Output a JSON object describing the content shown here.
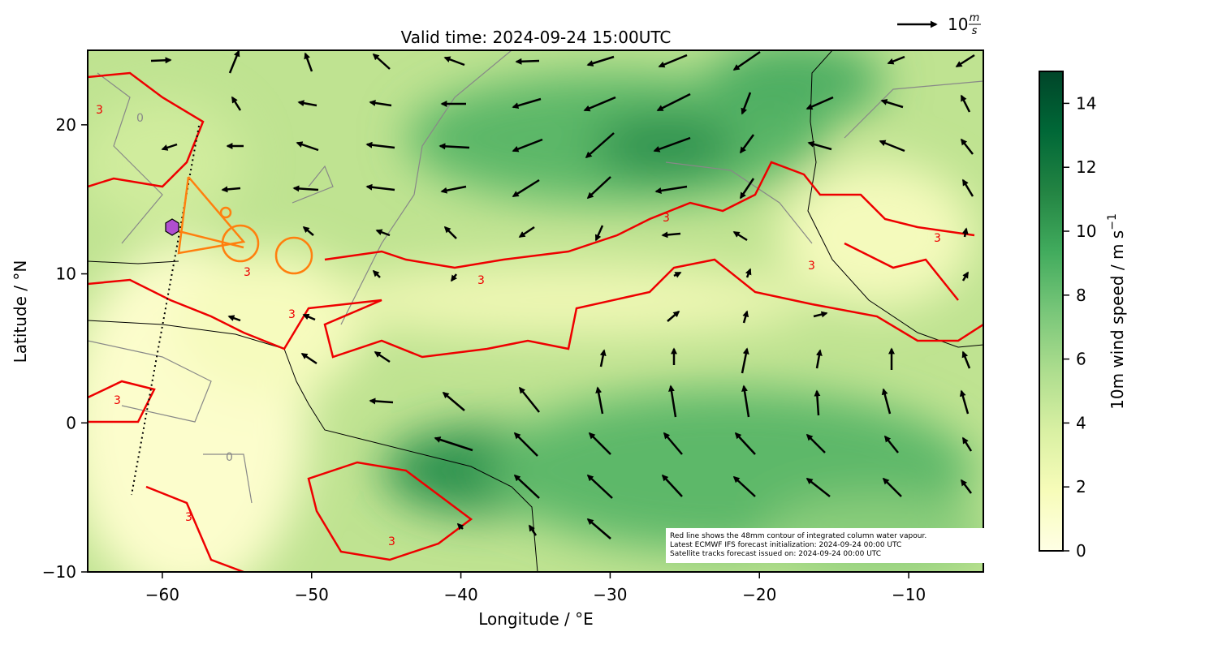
{
  "chart_data": {
    "type": "map",
    "title": "Valid time: 2024-09-24 15:00UTC",
    "xlabel": "Longitude / °E",
    "ylabel": "Latitude / °N",
    "xlim": [
      -65,
      -5
    ],
    "ylim": [
      -10,
      25
    ],
    "xticks": [
      {
        "value": -60,
        "label": "−60"
      },
      {
        "value": -50,
        "label": "−50"
      },
      {
        "value": -40,
        "label": "−40"
      },
      {
        "value": -30,
        "label": "−30"
      },
      {
        "value": -20,
        "label": "−20"
      },
      {
        "value": -10,
        "label": "−10"
      }
    ],
    "yticks": [
      {
        "value": -10,
        "label": "−10"
      },
      0,
      10,
      20
    ],
    "colorbar": {
      "label": "10m wind speed / m s",
      "label_sup": "−1",
      "lim": [
        0,
        15
      ],
      "ticks": [
        0,
        2,
        4,
        6,
        8,
        10,
        12,
        14
      ],
      "colors": [
        "#ffffe5",
        "#f7fcb9",
        "#d9f0a3",
        "#addd8e",
        "#78c679",
        "#41ab5d",
        "#238443",
        "#006837",
        "#004529"
      ]
    },
    "quiver_key": {
      "label": "10",
      "unit_top": "m",
      "unit_bottom": "s"
    },
    "contour_label": "3",
    "gray_contour_label": "0",
    "annotation": [
      "Red line shows the 48mm contour of integrated column water vapour.",
      "Latest ECMWF IFS forecast initialization: 2024-09-24 00:00 UTC",
      "Satellite tracks forecast issued on: 2024-09-24 00:00 UTC"
    ]
  }
}
